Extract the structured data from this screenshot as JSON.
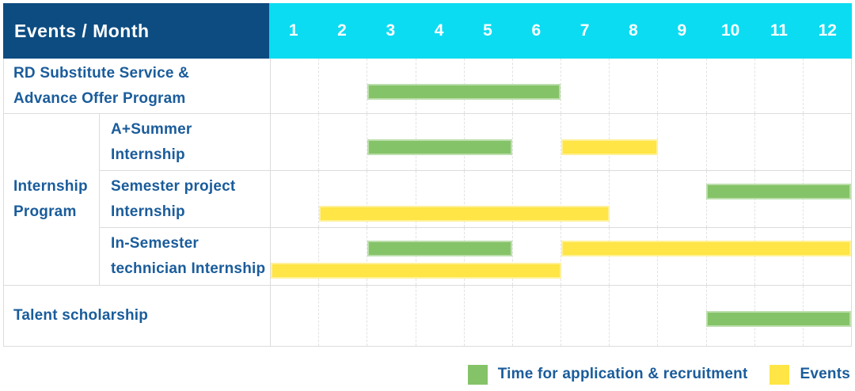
{
  "header": {
    "label": "Events / Month"
  },
  "colors": {
    "header_bg": "#0d4c81",
    "months_bg": "#0bdcf2",
    "label_text": "#1a5c9b",
    "grid_line": "#dcdcdc",
    "green": "#85c368",
    "yellow": "#ffe545"
  },
  "chart_data": {
    "type": "gantt-table",
    "title": "Events / Month",
    "months": [
      "1",
      "2",
      "3",
      "4",
      "5",
      "6",
      "7",
      "8",
      "9",
      "10",
      "11",
      "12"
    ],
    "x_range": [
      1,
      12
    ],
    "grid": "dashed-vertical-month-lines",
    "legend_position": "bottom-right",
    "bar_types": {
      "application": {
        "label": "Time for application & recruitment",
        "color": "#85c368"
      },
      "event": {
        "label": "Events",
        "color": "#ffe545"
      }
    },
    "rows": [
      {
        "label": "RD Substitute Service &\nAdvance Offer Program",
        "bars": [
          {
            "type": "application",
            "start_month": 3,
            "end_month": 6,
            "lane": "single"
          }
        ]
      },
      {
        "group": "Internship\nProgram",
        "group_span": 3,
        "label": "A+Summer\nInternship",
        "bars": [
          {
            "type": "application",
            "start_month": 3,
            "end_month": 5,
            "lane": "single"
          },
          {
            "type": "event",
            "start_month": 7,
            "end_month": 8,
            "lane": "single"
          }
        ]
      },
      {
        "label": "Semester project\nInternship",
        "bars": [
          {
            "type": "application",
            "start_month": 10,
            "end_month": 12,
            "lane": "upper"
          },
          {
            "type": "event",
            "start_month": 2,
            "end_month": 7,
            "lane": "lower"
          }
        ]
      },
      {
        "label": "In-Semester\ntechnician Internship",
        "bars": [
          {
            "type": "application",
            "start_month": 3,
            "end_month": 5,
            "lane": "upper"
          },
          {
            "type": "event",
            "start_month": 7,
            "end_month": 12,
            "lane": "upper"
          },
          {
            "type": "event",
            "start_month": 1,
            "end_month": 6,
            "lane": "lower"
          }
        ]
      },
      {
        "label": "Talent scholarship",
        "bars": [
          {
            "type": "application",
            "start_month": 10,
            "end_month": 12,
            "lane": "single"
          }
        ]
      }
    ]
  },
  "legend": {
    "items": [
      {
        "swatch": "green-square",
        "label": "Time for application & recruitment"
      },
      {
        "swatch": "yellow-square",
        "label": "Events"
      }
    ]
  }
}
